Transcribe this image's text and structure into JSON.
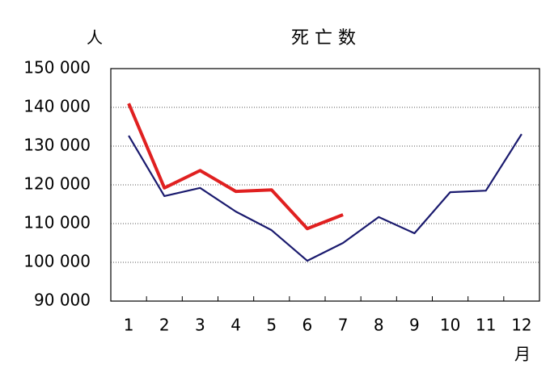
{
  "chart_data": {
    "type": "line",
    "title": "死 亡 数",
    "y_label": "人",
    "x_label": "月",
    "categories": [
      "1",
      "2",
      "3",
      "4",
      "5",
      "6",
      "7",
      "8",
      "9",
      "10",
      "11",
      "12"
    ],
    "series": [
      {
        "color": "#1a1a6e",
        "values": [
          132700,
          117100,
          119200,
          113100,
          108300,
          100400,
          105000,
          111700,
          107500,
          118100,
          118500,
          133100
        ]
      },
      {
        "color": "#e02020",
        "values": [
          141000,
          119200,
          123700,
          118300,
          118700,
          108700,
          112300,
          null,
          null,
          null,
          null,
          null
        ]
      }
    ],
    "ylim": [
      90000,
      150000
    ],
    "yticks": [
      {
        "value": 90000,
        "label": "90 000"
      },
      {
        "value": 100000,
        "label": "100 000"
      },
      {
        "value": 110000,
        "label": "110 000"
      },
      {
        "value": 120000,
        "label": "120 000"
      },
      {
        "value": 130000,
        "label": "130 000"
      },
      {
        "value": 140000,
        "label": "140 000"
      },
      {
        "value": 150000,
        "label": "150 000"
      }
    ],
    "grid": true
  }
}
